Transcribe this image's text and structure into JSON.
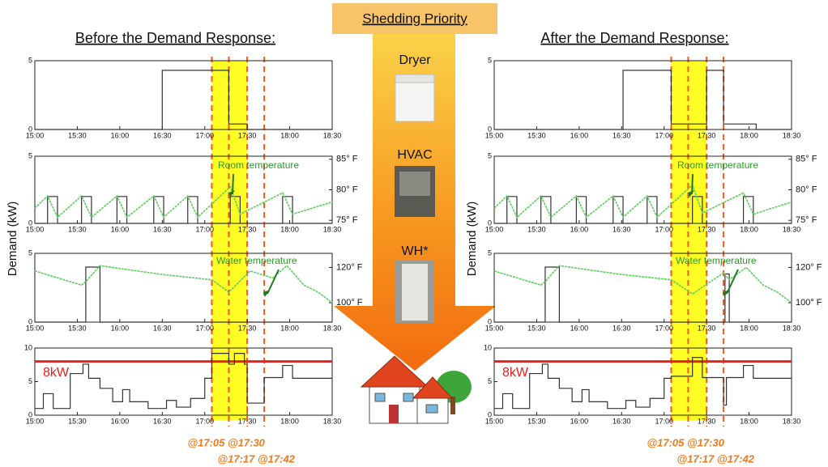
{
  "priority": {
    "title": "Shedding Priority",
    "items": [
      "Dryer",
      "HVAC",
      "WH*"
    ]
  },
  "groups": [
    {
      "title": "Before the Demand Response:",
      "ylabel": "Demand (kW)",
      "times": [
        "@17:05 @17:30",
        "@17:17 @17:42"
      ],
      "highlight": [
        1025,
        1050
      ],
      "markers": [
        1025,
        1037,
        1050,
        1062
      ]
    },
    {
      "title": "After the Demand Response:",
      "ylabel": "Demand (kW)",
      "times": [
        "@17:05 @17:30",
        "@17:17 @17:42"
      ],
      "highlight": [
        1025,
        1050
      ],
      "markers": [
        1025,
        1037,
        1050,
        1062
      ]
    }
  ],
  "chart_data": [
    {
      "type": "line",
      "xlim": [
        900,
        1110
      ],
      "xticks": [
        {
          "value": 900,
          "label": "15:00"
        },
        {
          "value": 930,
          "label": "15:30"
        },
        {
          "value": 960,
          "label": "16:00"
        },
        {
          "value": 990,
          "label": "16:30"
        },
        {
          "value": 1020,
          "label": "17:00"
        },
        {
          "value": 1050,
          "label": "17:30"
        },
        {
          "value": 1080,
          "label": "18:00"
        },
        {
          "value": 1110,
          "label": "18:30"
        }
      ],
      "ylim": [
        0,
        5
      ],
      "yticks": [
        0,
        5
      ],
      "series": [
        {
          "color": "#333333",
          "x": [
            900,
            990,
            990,
            1037,
            1037,
            1050,
            1050,
            1110
          ],
          "values": [
            0,
            0,
            4.3,
            4.3,
            0.4,
            0.4,
            0,
            0
          ]
        }
      ]
    },
    {
      "type": "line",
      "xlim": [
        900,
        1110
      ],
      "xticks": [
        {
          "value": 900,
          "label": "15:00"
        },
        {
          "value": 930,
          "label": "15:30"
        },
        {
          "value": 960,
          "label": "16:00"
        },
        {
          "value": 990,
          "label": "16:30"
        },
        {
          "value": 1020,
          "label": "17:00"
        },
        {
          "value": 1050,
          "label": "17:30"
        },
        {
          "value": 1080,
          "label": "18:00"
        },
        {
          "value": 1110,
          "label": "18:30"
        }
      ],
      "ylim": [
        0,
        5
      ],
      "yticks": [
        0,
        5
      ],
      "y2lim": [
        74.5,
        85.5
      ],
      "y2ticks": [
        {
          "value": 85,
          "label": "85° F"
        },
        {
          "value": 80,
          "label": "80° F"
        },
        {
          "value": 75,
          "label": "75° F"
        }
      ],
      "annotation": "Room temperature",
      "series": [
        {
          "color": "#333333",
          "x": [
            900,
            909,
            909,
            916,
            916,
            933,
            933,
            940,
            940,
            958,
            958,
            965,
            965,
            984,
            984,
            991,
            991,
            1008,
            1008,
            1015,
            1015,
            1038,
            1038,
            1045,
            1045,
            1075,
            1075,
            1082,
            1082,
            1110
          ],
          "values": [
            0,
            0,
            2,
            2,
            0,
            0,
            2,
            2,
            0,
            0,
            2,
            2,
            0,
            0,
            2,
            2,
            0,
            0,
            2,
            2,
            0,
            0,
            2,
            2,
            0,
            0,
            2,
            2,
            0,
            0
          ]
        },
        {
          "color": "#5ccf5c",
          "axis": "y2",
          "x": [
            900,
            909,
            916,
            933,
            940,
            958,
            965,
            984,
            991,
            1008,
            1015,
            1038,
            1045,
            1075,
            1082,
            1110
          ],
          "values": [
            77,
            79,
            75.5,
            79,
            75.5,
            79,
            75.5,
            79,
            75.5,
            79,
            75.5,
            80.5,
            76,
            79.5,
            76,
            78
          ]
        }
      ]
    },
    {
      "type": "line",
      "xlim": [
        900,
        1110
      ],
      "xticks": [
        {
          "value": 900,
          "label": "15:00"
        },
        {
          "value": 930,
          "label": "15:30"
        },
        {
          "value": 960,
          "label": "16:00"
        },
        {
          "value": 990,
          "label": "16:30"
        },
        {
          "value": 1020,
          "label": "17:00"
        },
        {
          "value": 1050,
          "label": "17:30"
        },
        {
          "value": 1080,
          "label": "18:00"
        },
        {
          "value": 1110,
          "label": "18:30"
        }
      ],
      "ylim": [
        0,
        5
      ],
      "yticks": [
        0,
        5
      ],
      "y2lim": [
        89,
        128
      ],
      "y2ticks": [
        {
          "value": 120,
          "label": "120° F"
        },
        {
          "value": 100,
          "label": "100° F"
        }
      ],
      "annotation": "Water temperature",
      "series": [
        {
          "color": "#333333",
          "x": [
            900,
            936,
            936,
            946,
            946,
            1110
          ],
          "values": [
            0,
            0,
            4,
            4,
            0,
            0
          ]
        },
        {
          "color": "#5ccf5c",
          "axis": "y2",
          "x": [
            900,
            933,
            936,
            946,
            990,
            1025,
            1037,
            1052,
            1060,
            1068,
            1078,
            1090,
            1100,
            1110
          ],
          "values": [
            118,
            110,
            112,
            121,
            116,
            113,
            106,
            118,
            116,
            114,
            121,
            110,
            106,
            100
          ]
        }
      ]
    },
    {
      "type": "line",
      "xlim": [
        900,
        1110
      ],
      "xticks": [
        {
          "value": 900,
          "label": "15:00"
        },
        {
          "value": 930,
          "label": "15:30"
        },
        {
          "value": 960,
          "label": "16:00"
        },
        {
          "value": 990,
          "label": "16:30"
        },
        {
          "value": 1020,
          "label": "17:00"
        },
        {
          "value": 1050,
          "label": "17:30"
        },
        {
          "value": 1080,
          "label": "18:00"
        },
        {
          "value": 1110,
          "label": "18:30"
        }
      ],
      "ylim": [
        0,
        10
      ],
      "yticks": [
        0,
        5,
        10
      ],
      "threshold": {
        "value": 8,
        "label": "8kW",
        "color": "#e8201a"
      },
      "series": [
        {
          "color": "#333333",
          "x": [
            900,
            906,
            906,
            913,
            913,
            925,
            925,
            934,
            934,
            938,
            938,
            946,
            946,
            955,
            955,
            962,
            962,
            967,
            967,
            980,
            980,
            993,
            993,
            1000,
            1000,
            1010,
            1010,
            1020,
            1020,
            1025,
            1025,
            1037,
            1037,
            1041,
            1041,
            1048,
            1048,
            1050,
            1050,
            1062,
            1062,
            1075,
            1075,
            1082,
            1082,
            1110
          ],
          "values": [
            1,
            1,
            3.2,
            3.2,
            1,
            1,
            6.2,
            6.2,
            7.6,
            7.6,
            5.5,
            5.5,
            4,
            4,
            2,
            2,
            3.8,
            3.8,
            2,
            2,
            1,
            1,
            2.2,
            2.2,
            1.2,
            1.2,
            2.5,
            2.5,
            5.5,
            5.5,
            9.2,
            9.2,
            7.6,
            7.6,
            9.2,
            9.2,
            7.6,
            7.6,
            1.8,
            1.8,
            5.6,
            5.6,
            7.4,
            7.4,
            5.5,
            5.5
          ]
        }
      ]
    },
    {
      "type": "line",
      "xlim": [
        900,
        1110
      ],
      "xticks": [
        {
          "value": 900,
          "label": "15:00"
        },
        {
          "value": 930,
          "label": "15:30"
        },
        {
          "value": 960,
          "label": "16:00"
        },
        {
          "value": 990,
          "label": "16:30"
        },
        {
          "value": 1020,
          "label": "17:00"
        },
        {
          "value": 1050,
          "label": "17:30"
        },
        {
          "value": 1080,
          "label": "18:00"
        },
        {
          "value": 1110,
          "label": "18:30"
        }
      ],
      "ylim": [
        0,
        5
      ],
      "yticks": [
        0,
        5
      ],
      "series": [
        {
          "color": "#333333",
          "x": [
            900,
            991,
            991,
            1025,
            1025,
            1050,
            1050,
            1062,
            1062,
            1085,
            1085,
            1110
          ],
          "values": [
            0,
            0,
            4.3,
            4.3,
            0.4,
            0.4,
            4.3,
            4.3,
            0.4,
            0.4,
            0,
            0
          ]
        }
      ]
    },
    {
      "type": "line",
      "xlim": [
        900,
        1110
      ],
      "xticks": [
        {
          "value": 900,
          "label": "15:00"
        },
        {
          "value": 930,
          "label": "15:30"
        },
        {
          "value": 960,
          "label": "16:00"
        },
        {
          "value": 990,
          "label": "16:30"
        },
        {
          "value": 1020,
          "label": "17:00"
        },
        {
          "value": 1050,
          "label": "17:30"
        },
        {
          "value": 1080,
          "label": "18:00"
        },
        {
          "value": 1110,
          "label": "18:30"
        }
      ],
      "ylim": [
        0,
        5
      ],
      "yticks": [
        0,
        5
      ],
      "y2lim": [
        74.5,
        85.5
      ],
      "y2ticks": [
        {
          "value": 85,
          "label": "85° F"
        },
        {
          "value": 80,
          "label": "80° F"
        },
        {
          "value": 75,
          "label": "75° F"
        }
      ],
      "annotation": "Room temperature",
      "series": [
        {
          "color": "#333333",
          "x": [
            900,
            909,
            909,
            916,
            916,
            933,
            933,
            940,
            940,
            958,
            958,
            965,
            965,
            984,
            984,
            991,
            991,
            1008,
            1008,
            1015,
            1015,
            1040,
            1040,
            1047,
            1047,
            1076,
            1076,
            1083,
            1083,
            1110
          ],
          "values": [
            0,
            0,
            2,
            2,
            0,
            0,
            2,
            2,
            0,
            0,
            2,
            2,
            0,
            0,
            2,
            2,
            0,
            0,
            2,
            2,
            0,
            0,
            2,
            2,
            0,
            0,
            2,
            2,
            0,
            0
          ]
        },
        {
          "color": "#5ccf5c",
          "axis": "y2",
          "x": [
            900,
            909,
            916,
            933,
            940,
            958,
            965,
            984,
            991,
            1008,
            1015,
            1040,
            1047,
            1076,
            1083,
            1110
          ],
          "values": [
            77,
            79,
            75.5,
            79,
            75.5,
            79,
            75.5,
            79,
            75.5,
            79,
            75.5,
            80.8,
            76.2,
            79.5,
            76,
            78
          ]
        }
      ]
    },
    {
      "type": "line",
      "xlim": [
        900,
        1110
      ],
      "xticks": [
        {
          "value": 900,
          "label": "15:00"
        },
        {
          "value": 930,
          "label": "15:30"
        },
        {
          "value": 960,
          "label": "16:00"
        },
        {
          "value": 990,
          "label": "16:30"
        },
        {
          "value": 1020,
          "label": "17:00"
        },
        {
          "value": 1050,
          "label": "17:30"
        },
        {
          "value": 1080,
          "label": "18:00"
        },
        {
          "value": 1110,
          "label": "18:30"
        }
      ],
      "ylim": [
        0,
        5
      ],
      "yticks": [
        0,
        5
      ],
      "y2lim": [
        89,
        128
      ],
      "y2ticks": [
        {
          "value": 120,
          "label": "120° F"
        },
        {
          "value": 100,
          "label": "100° F"
        }
      ],
      "annotation": "Water temperature",
      "series": [
        {
          "color": "#333333",
          "x": [
            900,
            936,
            936,
            946,
            946,
            1063,
            1063,
            1066,
            1066,
            1110
          ],
          "values": [
            0,
            0,
            4,
            4,
            0,
            0,
            3.5,
            3.5,
            0,
            0
          ]
        },
        {
          "color": "#5ccf5c",
          "axis": "y2",
          "x": [
            900,
            933,
            936,
            946,
            990,
            1025,
            1040,
            1062,
            1066,
            1078,
            1090,
            1100,
            1110
          ],
          "values": [
            118,
            110,
            112,
            121,
            116,
            113,
            105,
            117,
            113,
            120,
            110,
            106,
            100
          ]
        }
      ]
    },
    {
      "type": "line",
      "xlim": [
        900,
        1110
      ],
      "xticks": [
        {
          "value": 900,
          "label": "15:00"
        },
        {
          "value": 930,
          "label": "15:30"
        },
        {
          "value": 960,
          "label": "16:00"
        },
        {
          "value": 990,
          "label": "16:30"
        },
        {
          "value": 1020,
          "label": "17:00"
        },
        {
          "value": 1050,
          "label": "17:30"
        },
        {
          "value": 1080,
          "label": "18:00"
        },
        {
          "value": 1110,
          "label": "18:30"
        }
      ],
      "ylim": [
        0,
        10
      ],
      "yticks": [
        0,
        5,
        10
      ],
      "threshold": {
        "value": 8,
        "label": "8kW",
        "color": "#e8201a"
      },
      "series": [
        {
          "color": "#333333",
          "x": [
            900,
            906,
            906,
            913,
            913,
            925,
            925,
            934,
            934,
            938,
            938,
            946,
            946,
            955,
            955,
            962,
            962,
            967,
            967,
            980,
            980,
            993,
            993,
            1000,
            1000,
            1010,
            1010,
            1020,
            1020,
            1025,
            1025,
            1040,
            1040,
            1047,
            1047,
            1062,
            1062,
            1064,
            1064,
            1076,
            1076,
            1083,
            1083,
            1110
          ],
          "values": [
            1,
            1,
            3.2,
            3.2,
            1,
            1,
            6.2,
            6.2,
            7.6,
            7.6,
            5.5,
            5.5,
            4,
            4,
            2,
            2,
            3.8,
            3.8,
            2,
            2,
            1,
            1,
            2.2,
            2.2,
            1.2,
            1.2,
            2.5,
            2.5,
            5.5,
            5.5,
            5.8,
            5.8,
            8.6,
            8.6,
            5.6,
            5.6,
            1.5,
            1.5,
            5.6,
            5.6,
            7.4,
            7.4,
            5.5,
            5.5
          ]
        }
      ]
    }
  ]
}
